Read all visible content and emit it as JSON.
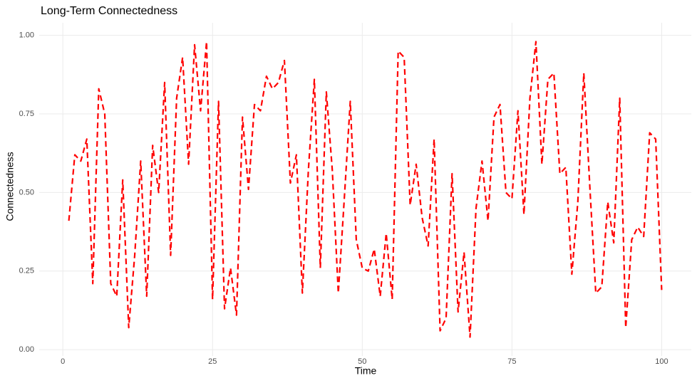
{
  "chart_data": {
    "type": "line",
    "title": "Long-Term Connectedness",
    "x_label": "Time",
    "y_label": "Connectedness",
    "x": [
      1,
      2,
      3,
      4,
      5,
      6,
      7,
      8,
      9,
      10,
      11,
      12,
      13,
      14,
      15,
      16,
      17,
      18,
      19,
      20,
      21,
      22,
      23,
      24,
      25,
      26,
      27,
      28,
      29,
      30,
      31,
      32,
      33,
      34,
      35,
      36,
      37,
      38,
      39,
      40,
      41,
      42,
      43,
      44,
      45,
      46,
      47,
      48,
      49,
      50,
      51,
      52,
      53,
      54,
      55,
      56,
      57,
      58,
      59,
      60,
      61,
      62,
      63,
      64,
      65,
      66,
      67,
      68,
      69,
      70,
      71,
      72,
      73,
      74,
      75,
      76,
      77,
      78,
      79,
      80,
      81,
      82,
      83,
      84,
      85,
      86,
      87,
      88,
      89,
      90,
      91,
      92,
      93,
      94,
      95,
      96,
      97,
      98,
      99,
      100
    ],
    "values": [
      0.41,
      0.62,
      0.6,
      0.67,
      0.21,
      0.83,
      0.75,
      0.21,
      0.17,
      0.54,
      0.07,
      0.3,
      0.6,
      0.17,
      0.65,
      0.5,
      0.85,
      0.3,
      0.8,
      0.93,
      0.59,
      0.97,
      0.76,
      0.98,
      0.16,
      0.79,
      0.13,
      0.26,
      0.11,
      0.74,
      0.51,
      0.78,
      0.76,
      0.87,
      0.83,
      0.85,
      0.92,
      0.53,
      0.62,
      0.18,
      0.57,
      0.86,
      0.26,
      0.82,
      0.57,
      0.18,
      0.48,
      0.79,
      0.35,
      0.26,
      0.25,
      0.32,
      0.17,
      0.37,
      0.16,
      0.95,
      0.93,
      0.46,
      0.59,
      0.42,
      0.33,
      0.67,
      0.06,
      0.1,
      0.56,
      0.12,
      0.31,
      0.04,
      0.45,
      0.6,
      0.41,
      0.74,
      0.78,
      0.5,
      0.48,
      0.76,
      0.43,
      0.8,
      0.98,
      0.59,
      0.86,
      0.88,
      0.56,
      0.58,
      0.24,
      0.47,
      0.88,
      0.52,
      0.18,
      0.2,
      0.47,
      0.34,
      0.8,
      0.07,
      0.35,
      0.39,
      0.36,
      0.69,
      0.67,
      0.19
    ],
    "color": "#ff0000",
    "line_style": "dashed",
    "xlim": [
      -3.95,
      104.95
    ],
    "ylim": [
      -0.02,
      1.04
    ],
    "xticks": [
      0,
      25,
      50,
      75,
      100
    ],
    "yticks": [
      {
        "value": 0,
        "label": "0.00"
      },
      {
        "value": 0.25,
        "label": "0.25"
      },
      {
        "value": 0.5,
        "label": "0.50"
      },
      {
        "value": 0.75,
        "label": "0.75"
      },
      {
        "value": 1,
        "label": "1.00"
      }
    ],
    "grid": true
  }
}
